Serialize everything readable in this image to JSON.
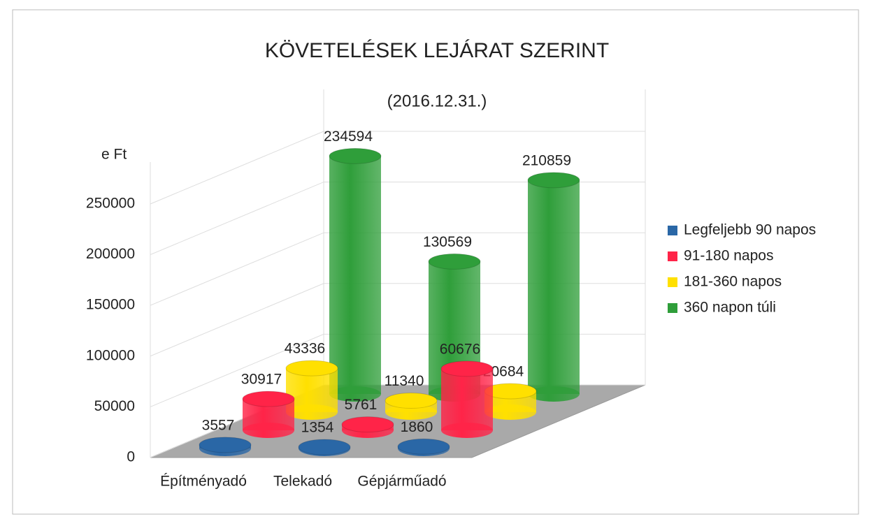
{
  "chart_data": {
    "type": "bar3d",
    "title": "KÖVETELÉSEK LEJÁRAT SZERINT",
    "subtitle": "(2016.12.31.)",
    "y_label": "e Ft",
    "categories": [
      "Építményadó",
      "Telekadó",
      "Gépjárműadó"
    ],
    "series": [
      {
        "name": "Legfeljebb 90 napos",
        "color": "#2a67a6",
        "values": [
          3557,
          1354,
          1860
        ]
      },
      {
        "name": "91-180 napos",
        "color": "#ff2448",
        "values": [
          30917,
          5761,
          60676
        ]
      },
      {
        "name": "181-360 napos",
        "color": "#ffe000",
        "values": [
          43336,
          11340,
          20684
        ]
      },
      {
        "name": "360 napon túli",
        "color": "#2f9e3a",
        "values": [
          234594,
          130569,
          210859
        ]
      }
    ],
    "ylim": [
      0,
      250000
    ],
    "yticks": [
      0,
      50000,
      100000,
      150000,
      200000,
      250000
    ],
    "grid": true,
    "legend": "right"
  }
}
